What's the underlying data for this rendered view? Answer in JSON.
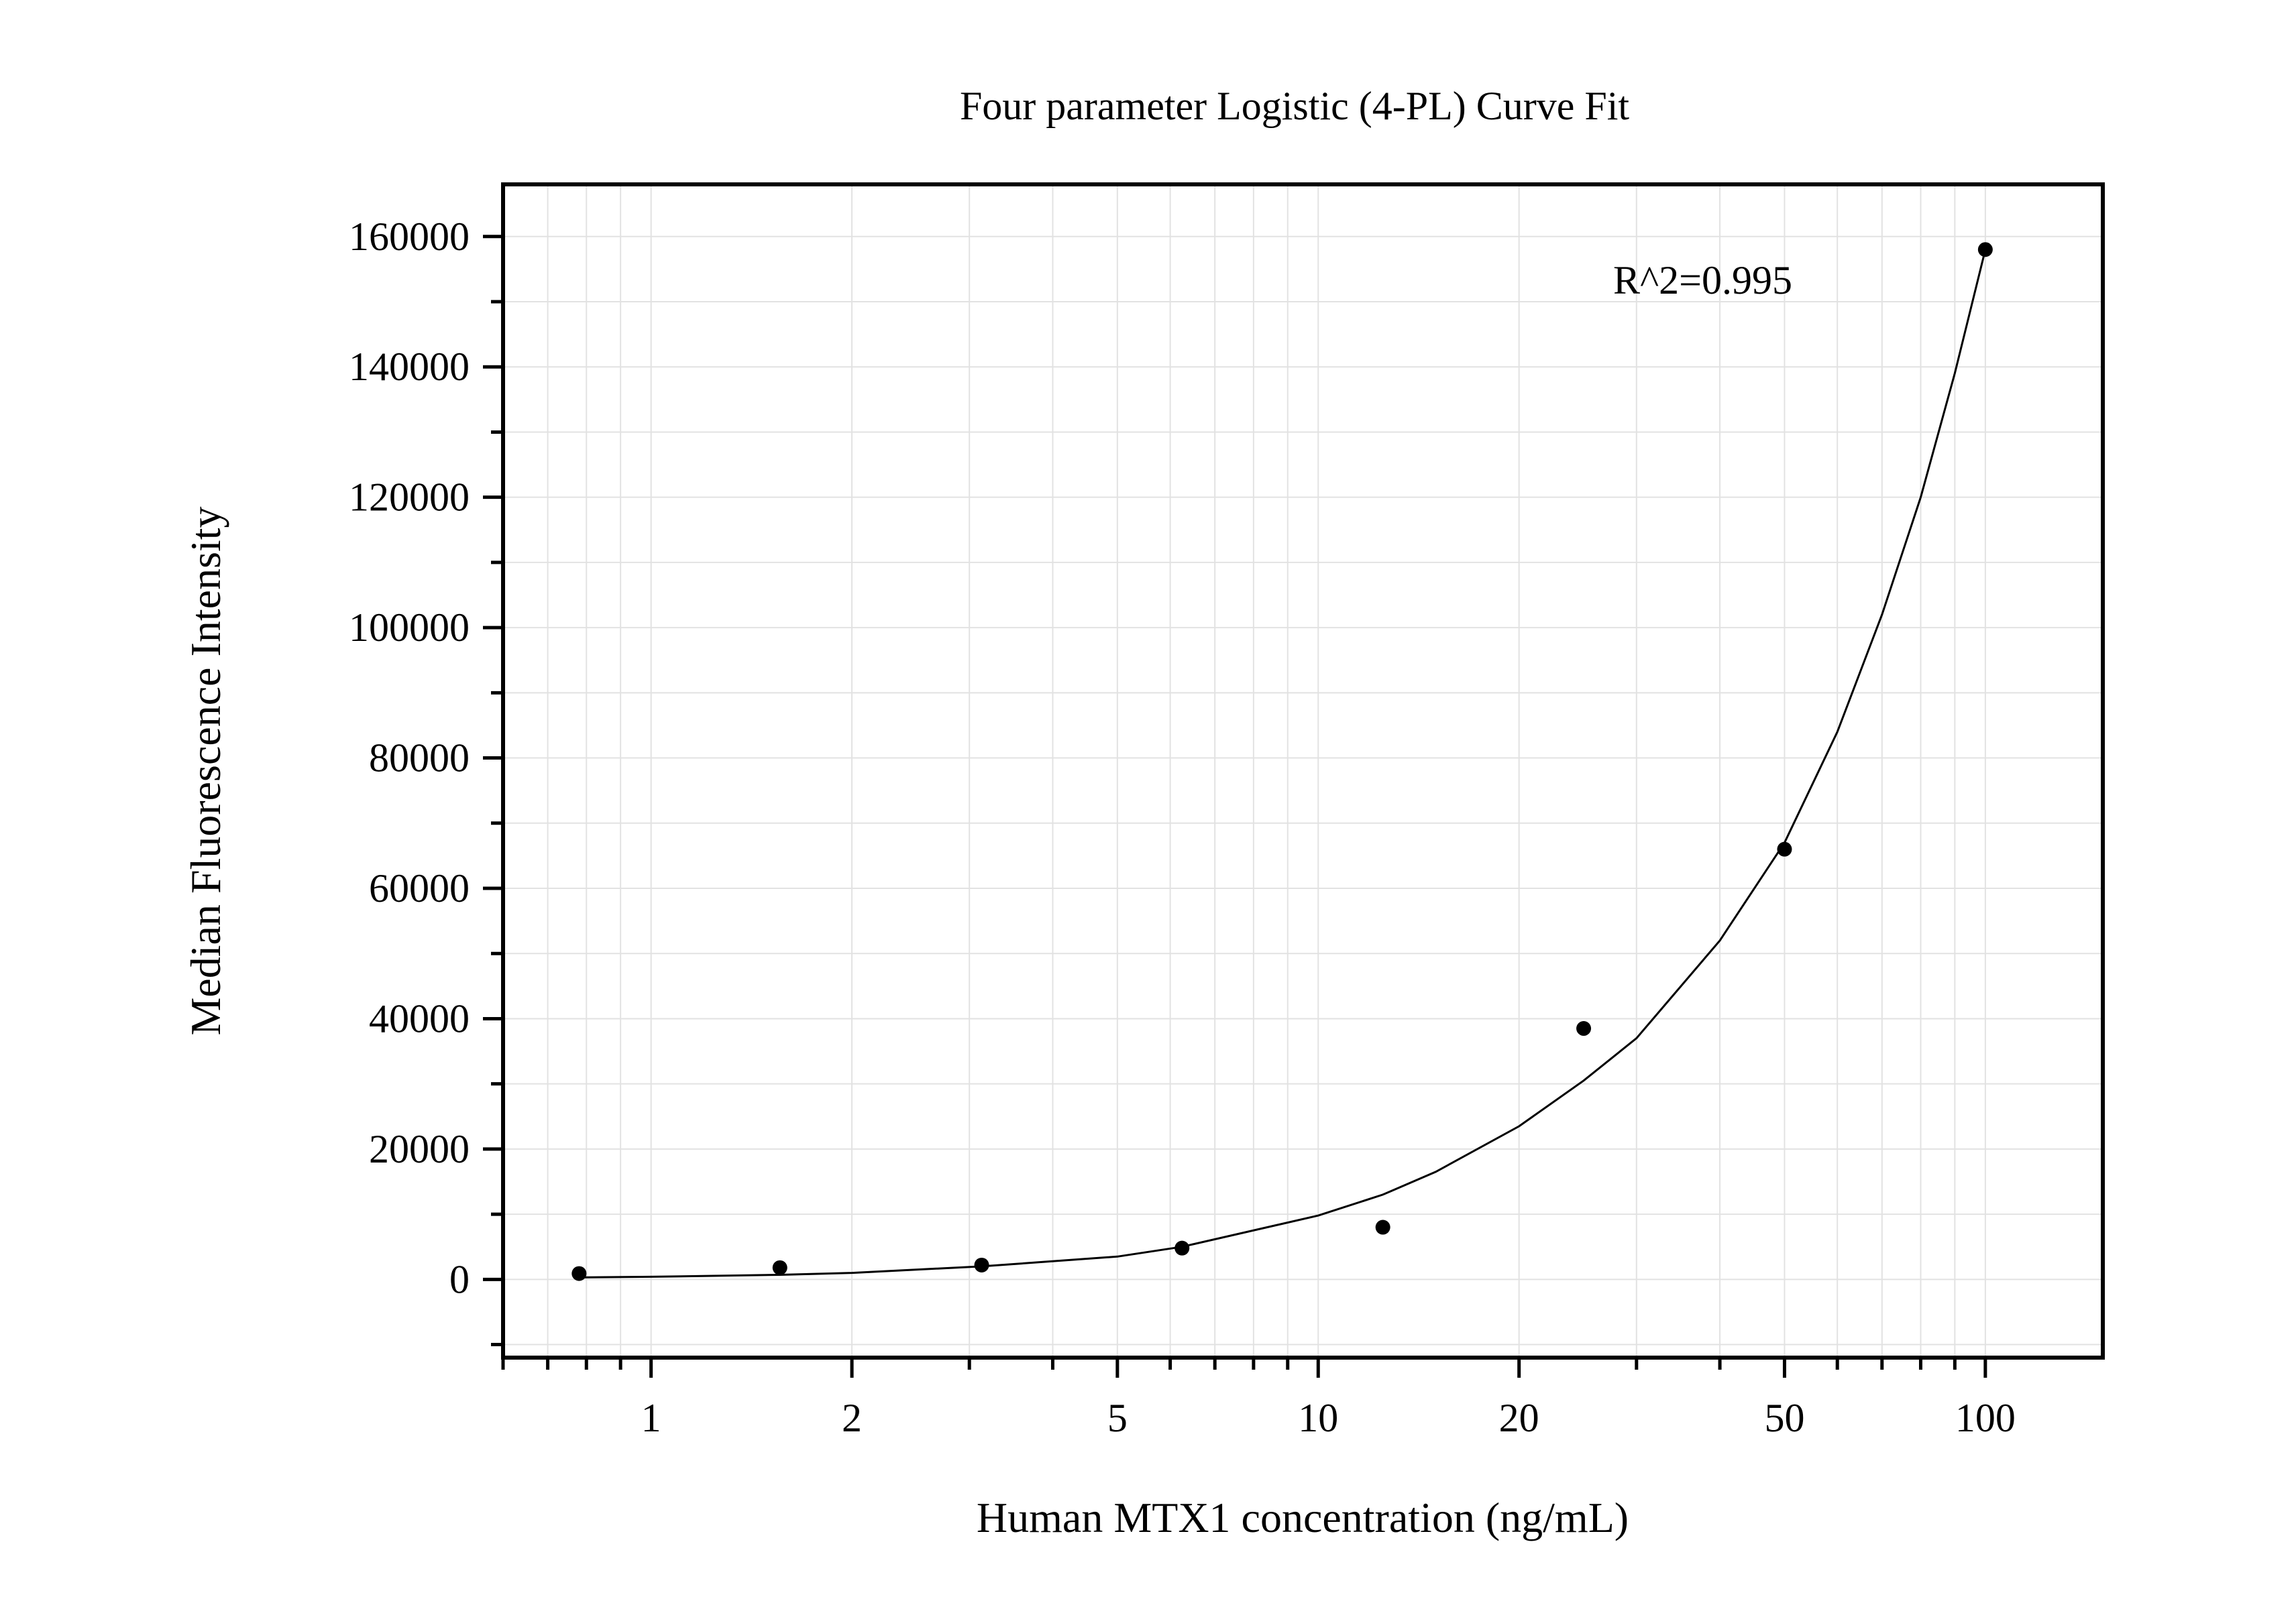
{
  "chart_data": {
    "type": "scatter",
    "title": "Four parameter Logistic (4-PL) Curve Fit",
    "xlabel": "Human MTX1 concentration (ng/mL)",
    "ylabel": "Median Fluorescence Intensity",
    "x_scale": "log",
    "xlim": [
      0.6,
      150
    ],
    "ylim": [
      -12000,
      168000
    ],
    "x_ticks": [
      {
        "value": 1,
        "label": "1"
      },
      {
        "value": 2,
        "label": "2"
      },
      {
        "value": 5,
        "label": "5"
      },
      {
        "value": 10,
        "label": "10"
      },
      {
        "value": 20,
        "label": "20"
      },
      {
        "value": 50,
        "label": "50"
      },
      {
        "value": 100,
        "label": "100"
      }
    ],
    "y_ticks": [
      {
        "value": 0,
        "label": "0"
      },
      {
        "value": 20000,
        "label": "20000"
      },
      {
        "value": 40000,
        "label": "40000"
      },
      {
        "value": 60000,
        "label": "60000"
      },
      {
        "value": 80000,
        "label": "80000"
      },
      {
        "value": 100000,
        "label": "100000"
      },
      {
        "value": 120000,
        "label": "120000"
      },
      {
        "value": 140000,
        "label": "140000"
      },
      {
        "value": 160000,
        "label": "160000"
      }
    ],
    "grid": true,
    "annotation": "R^2=0.995",
    "series": [
      {
        "type": "scatter",
        "x": [
          0.78,
          1.56,
          3.13,
          6.25,
          12.5,
          25,
          50,
          100
        ],
        "y": [
          900,
          1800,
          2200,
          4800,
          8000,
          38500,
          66000,
          158000
        ],
        "color": "#000000"
      },
      {
        "type": "line",
        "x": [
          0.78,
          1,
          1.56,
          2,
          3.13,
          5,
          6.25,
          10,
          12.5,
          15,
          20,
          25,
          30,
          40,
          50,
          60,
          70,
          80,
          90,
          100
        ],
        "y": [
          300,
          400,
          700,
          1000,
          2000,
          3500,
          5000,
          9800,
          13000,
          16500,
          23500,
          30500,
          37000,
          52000,
          67000,
          84000,
          102000,
          120000,
          139000,
          158000
        ],
        "color": "#000000"
      }
    ]
  }
}
